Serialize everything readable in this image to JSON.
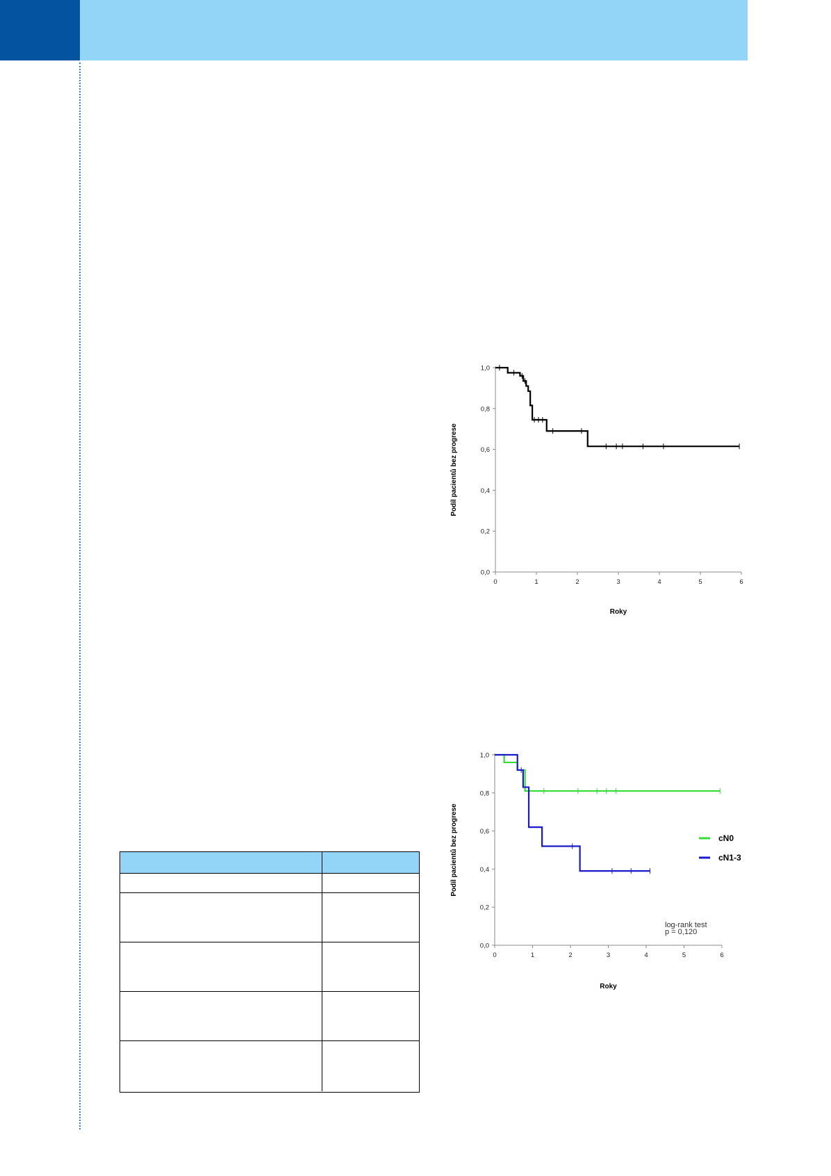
{
  "colors": {
    "header_dark": "#0353a0",
    "header_light": "#93d5f6",
    "cn0": "#33dd33",
    "cn13": "#1a1acc",
    "km": "#000000"
  },
  "table": {
    "rows": 6
  },
  "chart_data": [
    {
      "type": "line",
      "ylabel": "Podíl pacientů bez progrese",
      "xlabel": "Roky",
      "xlim": [
        0,
        6
      ],
      "ylim": [
        0,
        1
      ],
      "xticks": [
        "0",
        "1",
        "2",
        "3",
        "4",
        "5",
        "6"
      ],
      "yticks": [
        "0,0",
        "0,2",
        "0,4",
        "0,6",
        "0,8",
        "1,0"
      ],
      "series": [
        {
          "color": "#000000",
          "steps": [
            [
              0,
              1.0
            ],
            [
              0.3,
              1.0
            ],
            [
              0.3,
              0.975
            ],
            [
              0.6,
              0.975
            ],
            [
              0.6,
              0.96
            ],
            [
              0.68,
              0.96
            ],
            [
              0.68,
              0.935
            ],
            [
              0.75,
              0.935
            ],
            [
              0.75,
              0.91
            ],
            [
              0.8,
              0.91
            ],
            [
              0.8,
              0.885
            ],
            [
              0.85,
              0.885
            ],
            [
              0.85,
              0.815
            ],
            [
              0.9,
              0.815
            ],
            [
              0.9,
              0.745
            ],
            [
              1.25,
              0.745
            ],
            [
              1.25,
              0.69
            ],
            [
              2.25,
              0.69
            ],
            [
              2.25,
              0.615
            ],
            [
              5.95,
              0.615
            ]
          ],
          "censors": [
            [
              0.1,
              1.0
            ],
            [
              0.45,
              0.975
            ],
            [
              0.65,
              0.96
            ],
            [
              0.72,
              0.935
            ],
            [
              0.95,
              0.745
            ],
            [
              1.05,
              0.745
            ],
            [
              1.15,
              0.745
            ],
            [
              1.4,
              0.69
            ],
            [
              2.1,
              0.69
            ],
            [
              2.7,
              0.615
            ],
            [
              2.95,
              0.615
            ],
            [
              3.1,
              0.615
            ],
            [
              3.6,
              0.615
            ],
            [
              4.1,
              0.615
            ],
            [
              5.95,
              0.615
            ]
          ]
        }
      ]
    },
    {
      "type": "line",
      "ylabel": "Podíl pacientů bez progrese",
      "xlabel": "Roky",
      "xlim": [
        0,
        6
      ],
      "ylim": [
        0,
        1
      ],
      "xticks": [
        "0",
        "1",
        "2",
        "3",
        "4",
        "5",
        "6"
      ],
      "yticks": [
        "0,0",
        "0,2",
        "0,4",
        "0,6",
        "0,8",
        "1,0"
      ],
      "annotation": [
        "log-rank test",
        "p = 0,120"
      ],
      "series": [
        {
          "name": "cN0",
          "color": "#33dd33",
          "steps": [
            [
              0,
              1.0
            ],
            [
              0.25,
              1.0
            ],
            [
              0.25,
              0.96
            ],
            [
              0.6,
              0.96
            ],
            [
              0.6,
              0.92
            ],
            [
              0.8,
              0.92
            ],
            [
              0.8,
              0.81
            ],
            [
              5.95,
              0.81
            ]
          ],
          "censors": [
            [
              0.9,
              0.81
            ],
            [
              1.3,
              0.81
            ],
            [
              2.2,
              0.81
            ],
            [
              2.7,
              0.81
            ],
            [
              2.95,
              0.81
            ],
            [
              3.2,
              0.81
            ],
            [
              5.95,
              0.81
            ]
          ]
        },
        {
          "name": "cN1-3",
          "color": "#1a1acc",
          "steps": [
            [
              0,
              1.0
            ],
            [
              0.6,
              1.0
            ],
            [
              0.6,
              0.92
            ],
            [
              0.75,
              0.92
            ],
            [
              0.75,
              0.83
            ],
            [
              0.9,
              0.83
            ],
            [
              0.9,
              0.62
            ],
            [
              1.25,
              0.62
            ],
            [
              1.25,
              0.52
            ],
            [
              2.25,
              0.52
            ],
            [
              2.25,
              0.39
            ],
            [
              4.1,
              0.39
            ]
          ],
          "censors": [
            [
              0.7,
              0.92
            ],
            [
              2.05,
              0.52
            ],
            [
              3.1,
              0.39
            ],
            [
              3.6,
              0.39
            ],
            [
              4.1,
              0.39
            ]
          ]
        }
      ]
    }
  ]
}
